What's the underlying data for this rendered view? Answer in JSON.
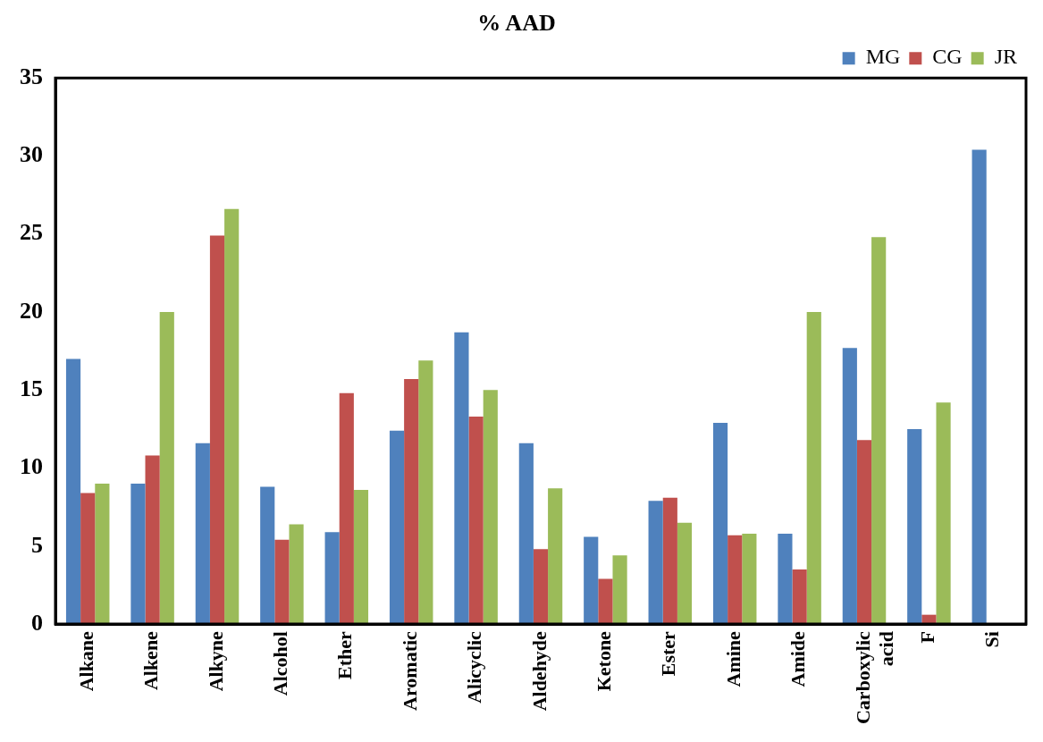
{
  "chart_data": {
    "type": "bar",
    "title": "% AAD",
    "categories": [
      "Alkane",
      "Alkene",
      "Alkyne",
      "Alcohol",
      "Ether",
      "Aromatic",
      "Alicyclic",
      "Aldehyde",
      "Ketone",
      "Ester",
      "Amine",
      "Amide",
      "Carboxylic\nacid",
      "F",
      "Si"
    ],
    "series": [
      {
        "name": "MG",
        "color": "#4f81bd",
        "values": [
          17.0,
          9.0,
          11.6,
          8.8,
          5.9,
          12.4,
          18.7,
          11.6,
          5.6,
          7.9,
          12.9,
          5.8,
          17.7,
          12.5,
          30.4
        ]
      },
      {
        "name": "CG",
        "color": "#c0504d",
        "values": [
          8.4,
          10.8,
          24.9,
          5.4,
          14.8,
          15.7,
          13.3,
          4.8,
          2.9,
          8.1,
          5.7,
          3.5,
          11.8,
          0.6,
          null
        ]
      },
      {
        "name": "JR",
        "color": "#9bbb59",
        "values": [
          9.0,
          20.0,
          26.6,
          6.4,
          8.6,
          16.9,
          15.0,
          8.7,
          4.4,
          6.5,
          5.8,
          20.0,
          24.8,
          14.2,
          null
        ]
      }
    ],
    "ylim": [
      0,
      35
    ],
    "yticks": [
      0,
      5,
      10,
      15,
      20,
      25,
      30,
      35
    ],
    "grid": false,
    "legend": "top right"
  }
}
